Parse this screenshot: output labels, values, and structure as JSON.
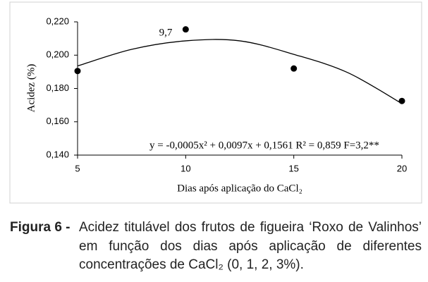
{
  "chart_data": {
    "type": "scatter",
    "x_label": "Dias após aplicação do CaCl₂",
    "y_label": "Acidez (%)",
    "annotation": "9,7",
    "equation": "y = -0,0005x² + 0,0097x + 0,1561  R² = 0,859  F=3,2**",
    "x": [
      5,
      10,
      15,
      20
    ],
    "values": [
      0.1905,
      0.2155,
      0.192,
      0.1725
    ],
    "color": "#000000",
    "trend": {
      "x": [
        5,
        7.5,
        10,
        12.5,
        15,
        17.5,
        20
      ],
      "values": [
        0.1935,
        0.2035,
        0.2086,
        0.2086,
        0.2005,
        0.1895,
        0.1709
      ]
    },
    "xlim": [
      5,
      20
    ],
    "xticks": [
      5,
      10,
      15,
      20
    ],
    "ylim": [
      0.14,
      0.22
    ],
    "yticks": [
      {
        "value": 0.14,
        "label": "0,140"
      },
      {
        "value": 0.16,
        "label": "0,160"
      },
      {
        "value": 0.18,
        "label": "0,180"
      },
      {
        "value": 0.2,
        "label": "0,200"
      },
      {
        "value": 0.22,
        "label": "0,220"
      }
    ],
    "caption_label": "Figura 6 -",
    "caption": "Acidez titulável dos frutos de figueira ‘Roxo de Valinhos’ em função dos dias após aplicação de diferentes concentrações de CaCl₂ (0, 1, 2, 3%)."
  }
}
